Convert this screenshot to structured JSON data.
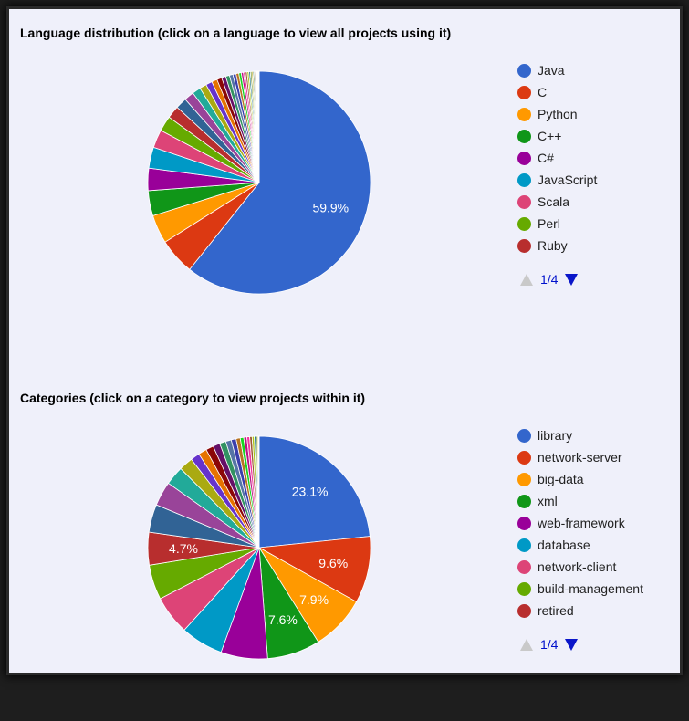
{
  "chart_data": [
    {
      "type": "pie",
      "title": "Language distribution (click on a language to view all projects using it)",
      "slices": [
        {
          "name": "Java",
          "value": 59.9,
          "color": "#3366cc",
          "label": "59.9%"
        },
        {
          "name": "C",
          "value": 5.2,
          "color": "#dc3912"
        },
        {
          "name": "Python",
          "value": 4.1,
          "color": "#ff9900"
        },
        {
          "name": "C++",
          "value": 3.6,
          "color": "#109618"
        },
        {
          "name": "C#",
          "value": 3.2,
          "color": "#990099"
        },
        {
          "name": "JavaScript",
          "value": 3.0,
          "color": "#0099c6"
        },
        {
          "name": "Scala",
          "value": 2.6,
          "color": "#dd4477"
        },
        {
          "name": "Perl",
          "value": 2.2,
          "color": "#66aa00"
        },
        {
          "name": "Ruby",
          "value": 1.8,
          "color": "#b82e2e"
        },
        {
          "value": 1.6,
          "color": "#316395"
        },
        {
          "value": 1.4,
          "color": "#994499"
        },
        {
          "value": 1.2,
          "color": "#22aa99"
        },
        {
          "value": 1.0,
          "color": "#aaaa11"
        },
        {
          "value": 0.9,
          "color": "#6633cc"
        },
        {
          "value": 0.8,
          "color": "#e67300"
        },
        {
          "value": 0.7,
          "color": "#8b0707"
        },
        {
          "value": 0.6,
          "color": "#651067"
        },
        {
          "value": 0.55,
          "color": "#329262"
        },
        {
          "value": 0.5,
          "color": "#5574a6"
        },
        {
          "value": 0.45,
          "color": "#3b3eac"
        },
        {
          "value": 0.4,
          "color": "#b77322"
        },
        {
          "value": 0.35,
          "color": "#16d620"
        },
        {
          "value": 0.3,
          "color": "#b91383"
        },
        {
          "value": 0.28,
          "color": "#f4359e"
        },
        {
          "value": 0.26,
          "color": "#9c5935"
        },
        {
          "value": 0.24,
          "color": "#a9c413"
        },
        {
          "value": 0.22,
          "color": "#2a778d"
        },
        {
          "value": 0.2,
          "color": "#668d1c"
        },
        {
          "value": 0.18,
          "color": "#bea413"
        },
        {
          "value": 0.16,
          "color": "#0c5922"
        },
        {
          "value": 0.14,
          "color": "#743411"
        },
        {
          "value": 0.12,
          "color": "#3366cc"
        },
        {
          "value": 0.1,
          "color": "#dc3912"
        },
        {
          "value": 0.09,
          "color": "#ff9900"
        },
        {
          "value": 0.08,
          "color": "#109618"
        },
        {
          "value": 0.07,
          "color": "#990099"
        },
        {
          "value": 0.06,
          "color": "#0099c6"
        },
        {
          "value": 0.05,
          "color": "#dd4477"
        }
      ],
      "legend": [
        "Java",
        "C",
        "Python",
        "C++",
        "C#",
        "JavaScript",
        "Scala",
        "Perl",
        "Ruby"
      ],
      "legend_position": "right",
      "pager": "1/4"
    },
    {
      "type": "pie",
      "title": "Categories (click on a category to view projects within it)",
      "slices": [
        {
          "name": "library",
          "value": 23.1,
          "color": "#3366cc",
          "label": "23.1%"
        },
        {
          "name": "network-server",
          "value": 9.6,
          "color": "#dc3912",
          "label": "9.6%"
        },
        {
          "name": "big-data",
          "value": 7.9,
          "color": "#ff9900",
          "label": "7.9%"
        },
        {
          "name": "xml",
          "value": 7.6,
          "color": "#109618",
          "label": "7.6%"
        },
        {
          "name": "web-framework",
          "value": 6.7,
          "color": "#990099"
        },
        {
          "name": "database",
          "value": 6.1,
          "color": "#0099c6"
        },
        {
          "name": "network-client",
          "value": 5.6,
          "color": "#dd4477"
        },
        {
          "name": "build-management",
          "value": 5.0,
          "color": "#66aa00"
        },
        {
          "name": "retired",
          "value": 4.7,
          "color": "#b82e2e",
          "label": "4.7%"
        },
        {
          "value": 4.0,
          "color": "#316395"
        },
        {
          "value": 3.5,
          "color": "#994499"
        },
        {
          "value": 2.7,
          "color": "#22aa99"
        },
        {
          "value": 2.0,
          "color": "#aaaa11"
        },
        {
          "value": 1.3,
          "color": "#6633cc"
        },
        {
          "value": 1.2,
          "color": "#e67300"
        },
        {
          "value": 1.1,
          "color": "#8b0707"
        },
        {
          "value": 1.0,
          "color": "#651067"
        },
        {
          "value": 0.9,
          "color": "#329262"
        },
        {
          "value": 0.8,
          "color": "#5574a6"
        },
        {
          "value": 0.7,
          "color": "#3b3eac"
        },
        {
          "value": 0.6,
          "color": "#b77322"
        },
        {
          "value": 0.5,
          "color": "#16d620"
        },
        {
          "value": 0.45,
          "color": "#b91383"
        },
        {
          "value": 0.4,
          "color": "#f4359e"
        },
        {
          "value": 0.35,
          "color": "#9c5935"
        },
        {
          "value": 0.3,
          "color": "#a9c413"
        },
        {
          "value": 0.25,
          "color": "#2a778d"
        },
        {
          "value": 0.2,
          "color": "#668d1c"
        },
        {
          "value": 0.15,
          "color": "#bea413"
        },
        {
          "value": 0.1,
          "color": "#0c5922"
        }
      ],
      "legend": [
        "library",
        "network-server",
        "big-data",
        "xml",
        "web-framework",
        "database",
        "network-client",
        "build-management",
        "retired"
      ],
      "legend_position": "right",
      "pager": "1/4"
    }
  ]
}
